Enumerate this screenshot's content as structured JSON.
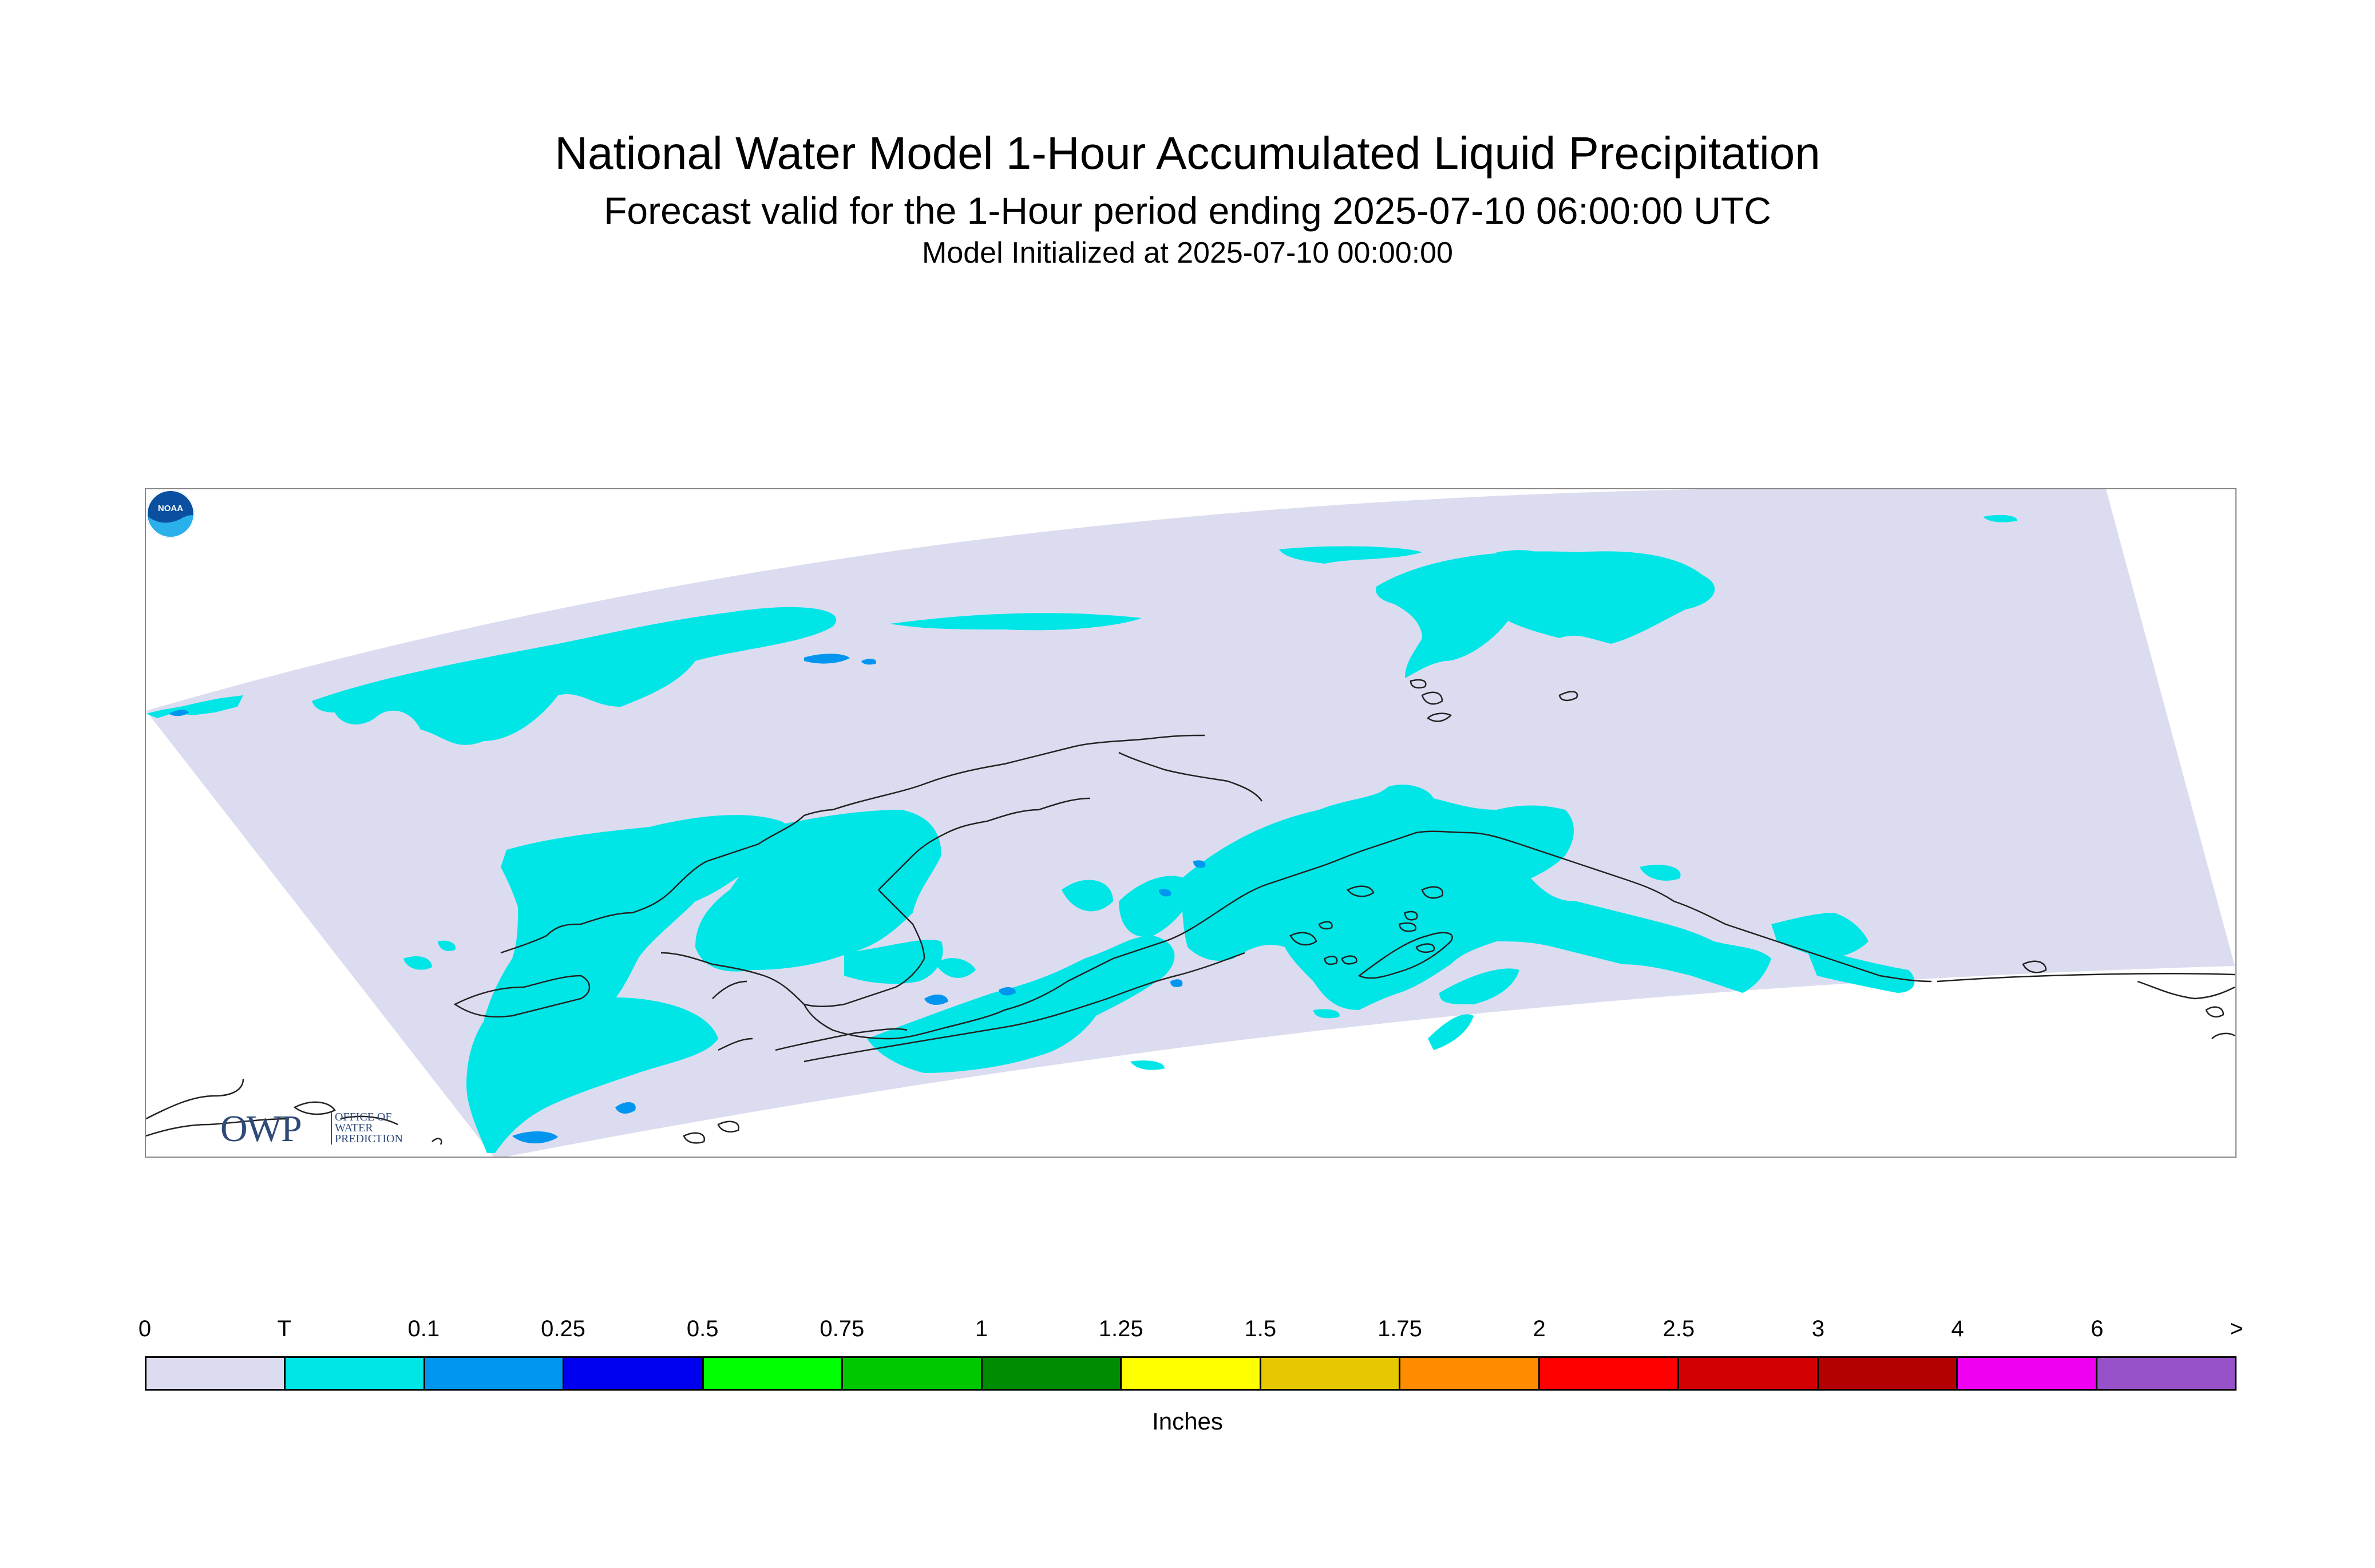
{
  "title": "National Water Model 1-Hour Accumulated Liquid Precipitation",
  "subtitle": "Forecast valid for the 1-Hour period ending 2025-07-10 06:00:00 UTC",
  "init_line": "Model Initialized at 2025-07-10 00:00:00",
  "colors": {
    "domain_fill": "#dcdcf0",
    "trace": "#00e6e6",
    "light_blue": "#0096f0",
    "coast": "#222222"
  },
  "owp_logo": {
    "big_text": "OWP",
    "line1": "OFFICE OF",
    "line2": "WATER",
    "line3": "PREDICTION"
  },
  "noaa_logo": {
    "text": "NOAA"
  },
  "legend": {
    "labels": [
      "0",
      "T",
      "0.1",
      "0.25",
      "0.5",
      "0.75",
      "1",
      "1.25",
      "1.5",
      "1.75",
      "2",
      "2.5",
      "3",
      "4",
      "6",
      ">"
    ],
    "colors": [
      "#dcdcf0",
      "#00e6e6",
      "#0096f0",
      "#0000f0",
      "#00ff00",
      "#00c800",
      "#008c00",
      "#ffff00",
      "#e6c800",
      "#ff8c00",
      "#ff0000",
      "#d20000",
      "#b40000",
      "#f000f0",
      "#9650c8"
    ],
    "units": "Inches"
  }
}
